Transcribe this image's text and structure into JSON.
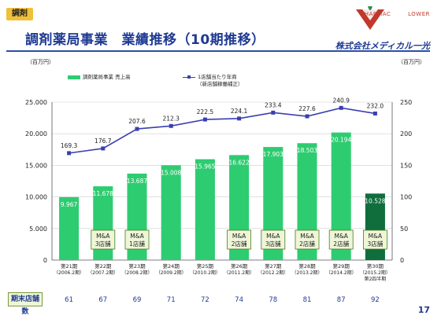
{
  "section_tag": "調剤",
  "title": "調剤薬局事業　業績推移（10期推移）",
  "logo": {
    "brand_top": "PHARMAC",
    "brand_top2": "LOWER",
    "company": "株式会社メディカル一光"
  },
  "unit_left": "（百万円）",
  "unit_right": "（百万円）",
  "legend": {
    "bar": "調剤薬局事業 売上高",
    "line": "1店舗当たり年商",
    "line_note": "（新店舗稼働補正）"
  },
  "store_count_label": "期末店舗数",
  "page_number": "17",
  "chart_data": {
    "type": "bar",
    "categories": [
      "第21期",
      "第22期",
      "第23期",
      "第24期",
      "第25期",
      "第26期",
      "第27期",
      "第28期",
      "第29期",
      "第30期"
    ],
    "category_sublabels": [
      "（2006.2期）",
      "（2007.2期）",
      "（2008.2期）",
      "（2009.2期）",
      "（2010.2期）",
      "（2011.2期）",
      "（2012.2期）",
      "（2013.2期）",
      "（2014.2期）",
      "（2015.2期）"
    ],
    "category_extra": [
      "",
      "",
      "",
      "",
      "",
      "",
      "",
      "",
      "",
      "第2四半期"
    ],
    "series": [
      {
        "name": "調剤薬局事業 売上高",
        "values": [
          9967,
          11678,
          13687,
          15008,
          15965,
          16622,
          17903,
          18503,
          20194,
          10528
        ],
        "labels": [
          "9.967",
          "11.678",
          "13.687",
          "15.008",
          "15.965",
          "16.622",
          "17.903",
          "18.503",
          "20.194",
          "10.528"
        ],
        "axis": "left",
        "color": "#2ecc71",
        "last_color": "#0f6e3c"
      },
      {
        "name": "1店舗当たり年商",
        "values": [
          169.3,
          176.7,
          207.6,
          212.3,
          222.5,
          224.1,
          233.4,
          227.6,
          240.9,
          232.0
        ],
        "labels": [
          "169.3",
          "176.7",
          "207.6",
          "212.3",
          "222.5",
          "224.1",
          "233.4",
          "227.6",
          "240.9",
          "232.0"
        ],
        "axis": "right",
        "color": "#3b3fb0"
      }
    ],
    "ylim_left": [
      0,
      25000
    ],
    "yticks_left": [
      "0",
      "5.000",
      "10.000",
      "15.000",
      "20.000",
      "25.000"
    ],
    "ylim_right": [
      0,
      250
    ],
    "yticks_right": [
      "0",
      "50",
      "100",
      "150",
      "200",
      "250"
    ],
    "annotations": [
      {
        "index": 1,
        "text": [
          "M&A",
          "3店舗"
        ]
      },
      {
        "index": 2,
        "text": [
          "M&A",
          "1店舗"
        ]
      },
      {
        "index": 5,
        "text": [
          "M&A",
          "2店舗"
        ]
      },
      {
        "index": 6,
        "text": [
          "M&A",
          "3店舗"
        ]
      },
      {
        "index": 7,
        "text": [
          "M&A",
          "2店舗"
        ]
      },
      {
        "index": 8,
        "text": [
          "M&A",
          "2店舗"
        ]
      },
      {
        "index": 9,
        "text": [
          "M&A",
          "3店舗"
        ]
      }
    ],
    "store_counts": [
      "61",
      "67",
      "69",
      "71",
      "72",
      "74",
      "78",
      "81",
      "87",
      "92"
    ],
    "grid": true
  }
}
